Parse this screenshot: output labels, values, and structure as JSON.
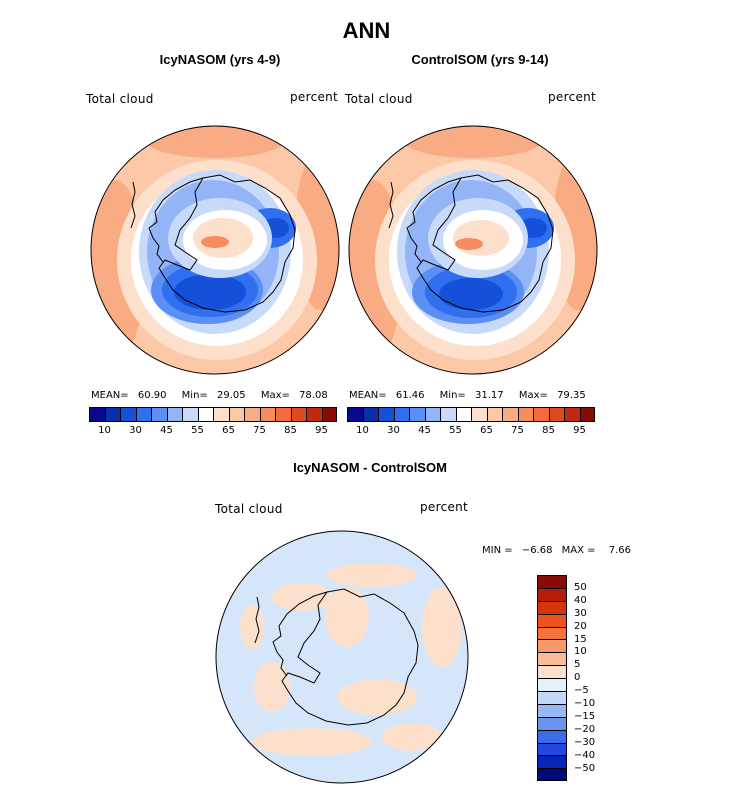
{
  "figure": {
    "title": "ANN",
    "bottom_title": "IcyNASOM - ControlSOM"
  },
  "colors": {
    "abs_scale": [
      "#08088a",
      "#0a2fa8",
      "#1450d8",
      "#2f6ff0",
      "#5b8ff5",
      "#93b4f7",
      "#c8daf9",
      "#ffffff",
      "#fde0cc",
      "#fcc8a8",
      "#f9ab84",
      "#f68c60",
      "#f26a3e",
      "#e04a22",
      "#c02a10",
      "#8a0a04"
    ],
    "diff_scale": [
      "#8a0a04",
      "#b41e08",
      "#d8340a",
      "#f0501c",
      "#f4733c",
      "#f69868",
      "#f9bb98",
      "#fde0cc",
      "#e4f0fa",
      "#c4d8f8",
      "#98b8f4",
      "#6a94ee",
      "#3d6cea",
      "#2248e0",
      "#0a24b4",
      "#000a78"
    ]
  },
  "chart_data": [
    {
      "type": "heatmap",
      "title": "IcyNASOM (yrs 4-9)",
      "variable": "Total cloud",
      "units": "percent",
      "stats": {
        "mean_label": "MEAN=",
        "mean": "60.90",
        "min_label": "Min=",
        "min": "29.05",
        "max_label": "Max=",
        "max": "78.08"
      },
      "colorbar_ticks": [
        "10",
        "30",
        "45",
        "55",
        "65",
        "75",
        "85",
        "95"
      ]
    },
    {
      "type": "heatmap",
      "title": "ControlSOM (yrs 9-14)",
      "variable": "Total cloud",
      "units": "percent",
      "stats": {
        "mean_label": "MEAN=",
        "mean": "61.46",
        "min_label": "Min=",
        "min": "31.17",
        "max_label": "Max=",
        "max": "79.35"
      },
      "colorbar_ticks": [
        "10",
        "30",
        "45",
        "55",
        "65",
        "75",
        "85",
        "95"
      ]
    },
    {
      "type": "heatmap",
      "title": "IcyNASOM - ControlSOM",
      "variable": "Total cloud",
      "units": "percent",
      "stats": {
        "min_label": "MIN =",
        "min": "−6.68",
        "max_label": "MAX =",
        "max": "7.66"
      },
      "colorbar_ticks": [
        "50",
        "40",
        "30",
        "20",
        "15",
        "10",
        "5",
        "0",
        "−5",
        "−10",
        "−15",
        "−20",
        "−30",
        "−40",
        "−50"
      ]
    }
  ]
}
